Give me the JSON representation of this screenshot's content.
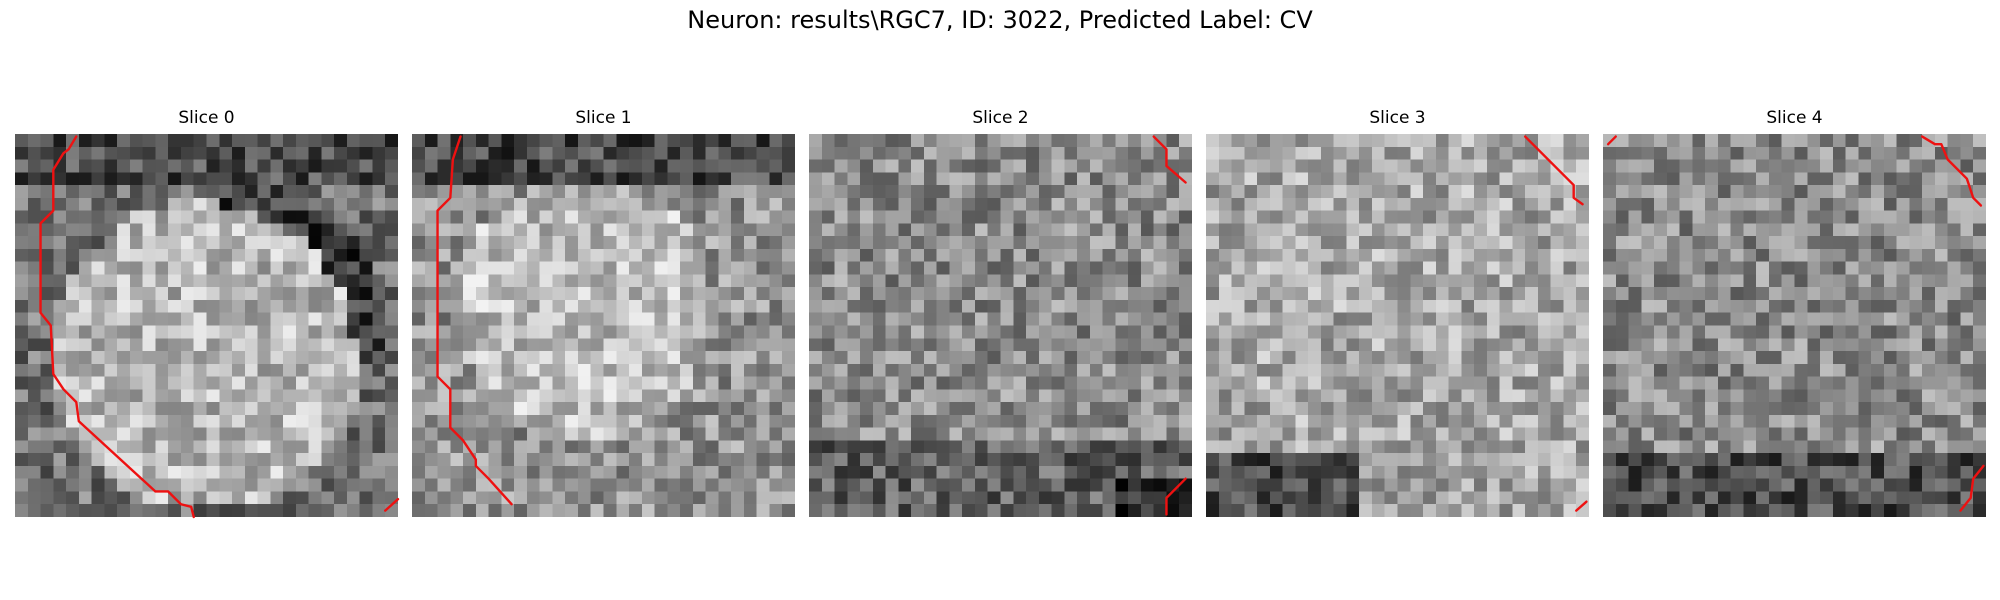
{
  "figure": {
    "title": "Neuron: results\\RGC7, ID: 3022, Predicted Label: CV"
  },
  "slices": [
    {
      "title": "Slice 0"
    },
    {
      "title": "Slice 1"
    },
    {
      "title": "Slice 2"
    },
    {
      "title": "Slice 3"
    },
    {
      "title": "Slice 4"
    }
  ],
  "colors": {
    "contour": "#ee1111",
    "colormap": "gray"
  }
}
